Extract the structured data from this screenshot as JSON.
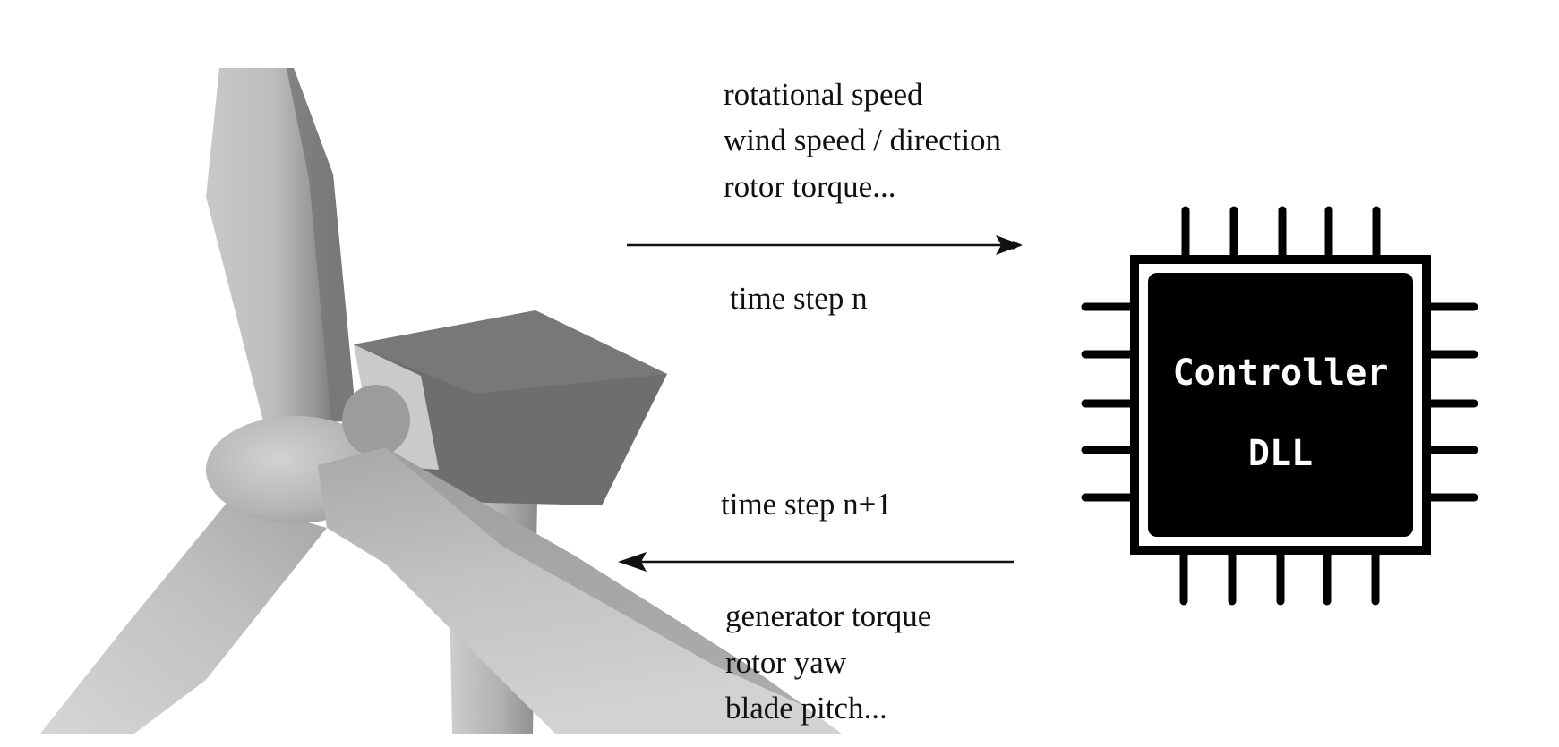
{
  "inputs": {
    "lines": [
      "rotational speed",
      "wind speed / direction",
      "rotor torque..."
    ],
    "step_label": "time step n"
  },
  "outputs": {
    "step_label": "time step n+1",
    "lines": [
      "generator torque",
      "rotor yaw",
      "blade pitch..."
    ]
  },
  "controller": {
    "line1": "Controller",
    "line2": "DLL"
  },
  "colors": {
    "chip_body": "#000000",
    "turbine_light": "#c4c4c4",
    "turbine_dark": "#6e6e6e",
    "arrow": "#111111"
  }
}
